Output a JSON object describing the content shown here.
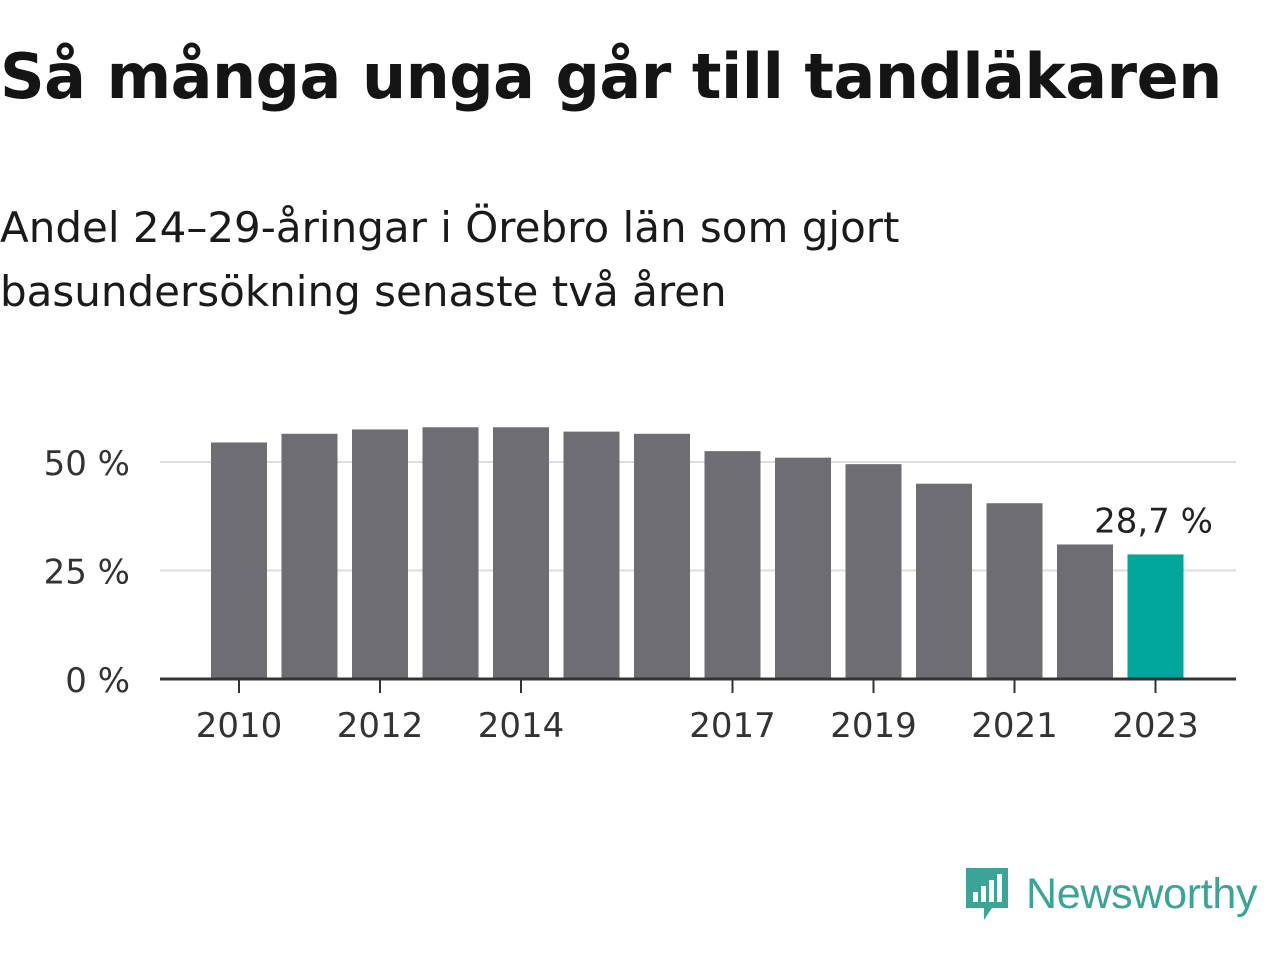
{
  "title": "Så många unga går till tandläkaren",
  "subtitle_line1": "Andel 24–29-åringar i Örebro län som gjort",
  "subtitle_line2": "basundersökning senaste två åren",
  "logo": {
    "text": "Newsworthy",
    "icon": "newsworthy-logo-icon",
    "color": "#3aa596"
  },
  "colors": {
    "bar": "#6e6d73",
    "highlight": "#00a59b",
    "grid": "#dcdcdc",
    "axis": "#333333"
  },
  "chart_data": {
    "type": "bar",
    "categories": [
      "2010",
      "2011",
      "2012",
      "2013",
      "2014",
      "2015",
      "2016",
      "2017",
      "2018",
      "2019",
      "2020",
      "2021",
      "2022",
      "2023"
    ],
    "values": [
      54.5,
      56.5,
      57.5,
      58.0,
      58.0,
      57.0,
      56.5,
      52.5,
      51.0,
      49.5,
      45.0,
      40.5,
      31.0,
      28.7
    ],
    "x_tick_labels": [
      "2010",
      "2012",
      "2014",
      "2017",
      "2019",
      "2021",
      "2023"
    ],
    "y_ticks": [
      0,
      25,
      50
    ],
    "y_tick_labels": [
      "0 %",
      "25 %",
      "50 %"
    ],
    "ylim": [
      0,
      60
    ],
    "highlight_index": 13,
    "data_label": "28,7 %",
    "xlabel": "",
    "ylabel": "",
    "grid": true
  }
}
